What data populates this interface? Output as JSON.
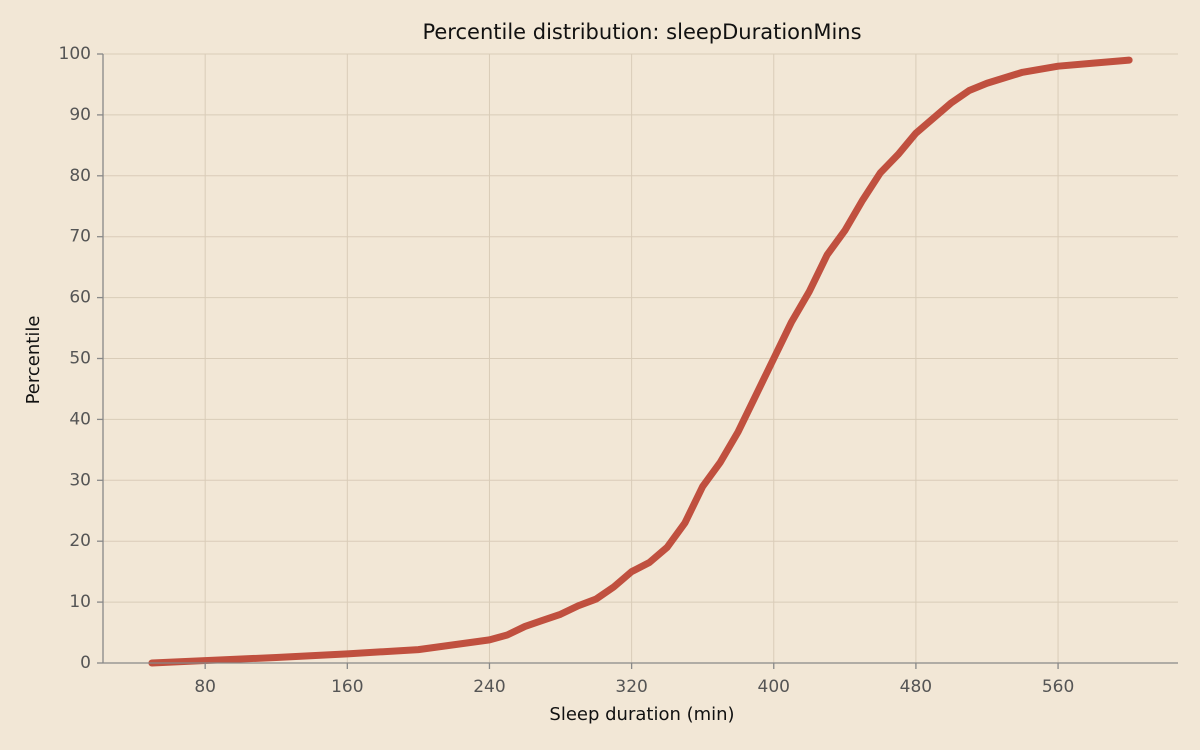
{
  "chart_data": {
    "type": "line",
    "title": "Percentile distribution: sleepDurationMins",
    "x_label": "Sleep duration (min)",
    "y_label": "Percentile",
    "series": [
      {
        "name": "sleepDurationMins",
        "color": "#c0503f",
        "x": [
          50,
          80,
          120,
          160,
          200,
          220,
          240,
          250,
          260,
          270,
          280,
          290,
          300,
          310,
          320,
          330,
          340,
          350,
          360,
          370,
          380,
          390,
          400,
          410,
          420,
          430,
          440,
          450,
          460,
          470,
          480,
          490,
          500,
          510,
          520,
          540,
          560,
          580,
          600
        ],
        "values": [
          0,
          0.4,
          0.9,
          1.5,
          2.2,
          3,
          3.8,
          4.6,
          6,
          7,
          8,
          9.4,
          10.5,
          12.5,
          15,
          16.5,
          19,
          23,
          29,
          33,
          38,
          44,
          50,
          56,
          61,
          67,
          71,
          76,
          80.5,
          83.5,
          87,
          89.5,
          92,
          94,
          95.2,
          97,
          98,
          98.5,
          99
        ]
      }
    ],
    "xlim": [
      22.5,
      627.5
    ],
    "ylim": [
      0,
      100
    ],
    "xticks": [
      80,
      160,
      240,
      320,
      400,
      480,
      560
    ],
    "yticks": [
      0,
      10,
      20,
      30,
      40,
      50,
      60,
      70,
      80,
      90,
      100
    ],
    "grid": true
  }
}
